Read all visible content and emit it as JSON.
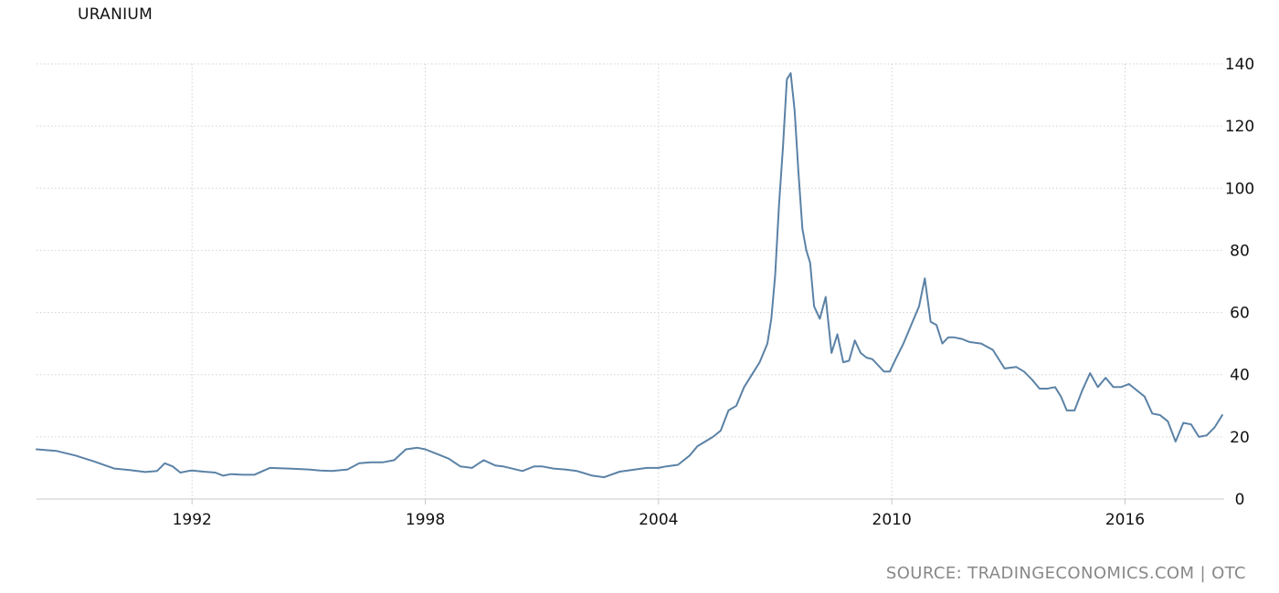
{
  "chart": {
    "title": "URANIUM",
    "source": "SOURCE: TRADINGECONOMICS.COM | OTC"
  },
  "chart_data": {
    "type": "line",
    "title": "URANIUM",
    "xlabel": "",
    "ylabel": "",
    "grid": true,
    "ylim": [
      0,
      140
    ],
    "xlim": [
      1988.0,
      2018.55
    ],
    "y_ticks": [
      0,
      20,
      40,
      60,
      80,
      100,
      120,
      140
    ],
    "x_ticks": [
      1992,
      1998,
      2004,
      2010,
      2016
    ],
    "x_tick_labels": [
      "1992",
      "1998",
      "2004",
      "2010",
      "2016"
    ],
    "series": [
      {
        "color": "#5b82a6",
        "x": [
          1988.0,
          1988.5,
          1989.0,
          1989.5,
          1990.0,
          1990.4,
          1990.8,
          1991.1,
          1991.3,
          1991.5,
          1991.7,
          1991.9,
          1992.0,
          1992.3,
          1992.6,
          1992.8,
          1993.0,
          1993.3,
          1993.6,
          1994.0,
          1994.5,
          1995.0,
          1995.3,
          1995.6,
          1996.0,
          1996.3,
          1996.6,
          1996.9,
          1997.2,
          1997.5,
          1997.8,
          1998.0,
          1998.3,
          1998.6,
          1998.9,
          1999.2,
          1999.5,
          1999.8,
          2000.0,
          2000.5,
          2000.8,
          2001.0,
          2001.3,
          2001.6,
          2001.9,
          2002.3,
          2002.6,
          2003.0,
          2003.4,
          2003.7,
          2004.0,
          2004.2,
          2004.5,
          2004.8,
          2005.0,
          2005.2,
          2005.4,
          2005.6,
          2005.8,
          2006.0,
          2006.2,
          2006.4,
          2006.6,
          2006.8,
          2006.9,
          2007.0,
          2007.1,
          2007.2,
          2007.3,
          2007.4,
          2007.5,
          2007.6,
          2007.7,
          2007.8,
          2007.9,
          2008.0,
          2008.15,
          2008.3,
          2008.45,
          2008.6,
          2008.75,
          2008.9,
          2009.05,
          2009.2,
          2009.35,
          2009.5,
          2009.65,
          2009.8,
          2009.95,
          2010.1,
          2010.3,
          2010.5,
          2010.7,
          2010.85,
          2011.0,
          2011.15,
          2011.3,
          2011.45,
          2011.6,
          2011.8,
          2012.0,
          2012.3,
          2012.6,
          2012.9,
          2013.2,
          2013.4,
          2013.6,
          2013.8,
          2014.0,
          2014.2,
          2014.35,
          2014.5,
          2014.7,
          2014.9,
          2015.1,
          2015.3,
          2015.5,
          2015.7,
          2015.9,
          2016.1,
          2016.3,
          2016.5,
          2016.7,
          2016.9,
          2017.1,
          2017.3,
          2017.5,
          2017.7,
          2017.9,
          2018.1,
          2018.3,
          2018.5
        ],
        "values": [
          16.0,
          15.5,
          14.0,
          12.0,
          9.8,
          9.3,
          8.7,
          9.0,
          11.5,
          10.5,
          8.5,
          9.0,
          9.2,
          8.8,
          8.5,
          7.5,
          8.0,
          7.8,
          7.8,
          10.0,
          9.8,
          9.5,
          9.2,
          9.0,
          9.5,
          11.5,
          11.8,
          11.8,
          12.5,
          16.0,
          16.5,
          16.0,
          14.5,
          13.0,
          10.5,
          10.0,
          12.5,
          10.8,
          10.5,
          9.0,
          10.5,
          10.5,
          9.8,
          9.5,
          9.0,
          7.5,
          7.0,
          8.8,
          9.5,
          10.0,
          10.0,
          10.5,
          11.0,
          14.0,
          17.0,
          18.5,
          20.0,
          22.0,
          28.5,
          30.0,
          36.0,
          40.0,
          44.0,
          50.0,
          58.0,
          72.0,
          95.0,
          113.0,
          135.0,
          137.0,
          125.0,
          105.0,
          87.0,
          80.0,
          76.0,
          62.0,
          58.0,
          65.0,
          47.0,
          53.0,
          44.0,
          44.5,
          51.0,
          47.0,
          45.5,
          45.0,
          43.0,
          41.0,
          41.0,
          45.0,
          50.0,
          56.0,
          62.0,
          71.0,
          57.0,
          56.0,
          50.0,
          52.0,
          52.0,
          51.5,
          50.5,
          50.0,
          48.0,
          42.0,
          42.5,
          41.0,
          38.5,
          35.5,
          35.5,
          36.0,
          33.0,
          28.5,
          28.5,
          35.0,
          40.5,
          36.0,
          39.0,
          36.0,
          36.0,
          37.0,
          35.0,
          33.0,
          27.5,
          27.0,
          25.0,
          18.5,
          24.5,
          24.0,
          20.0,
          20.5,
          23.0,
          27.0
        ]
      }
    ]
  }
}
